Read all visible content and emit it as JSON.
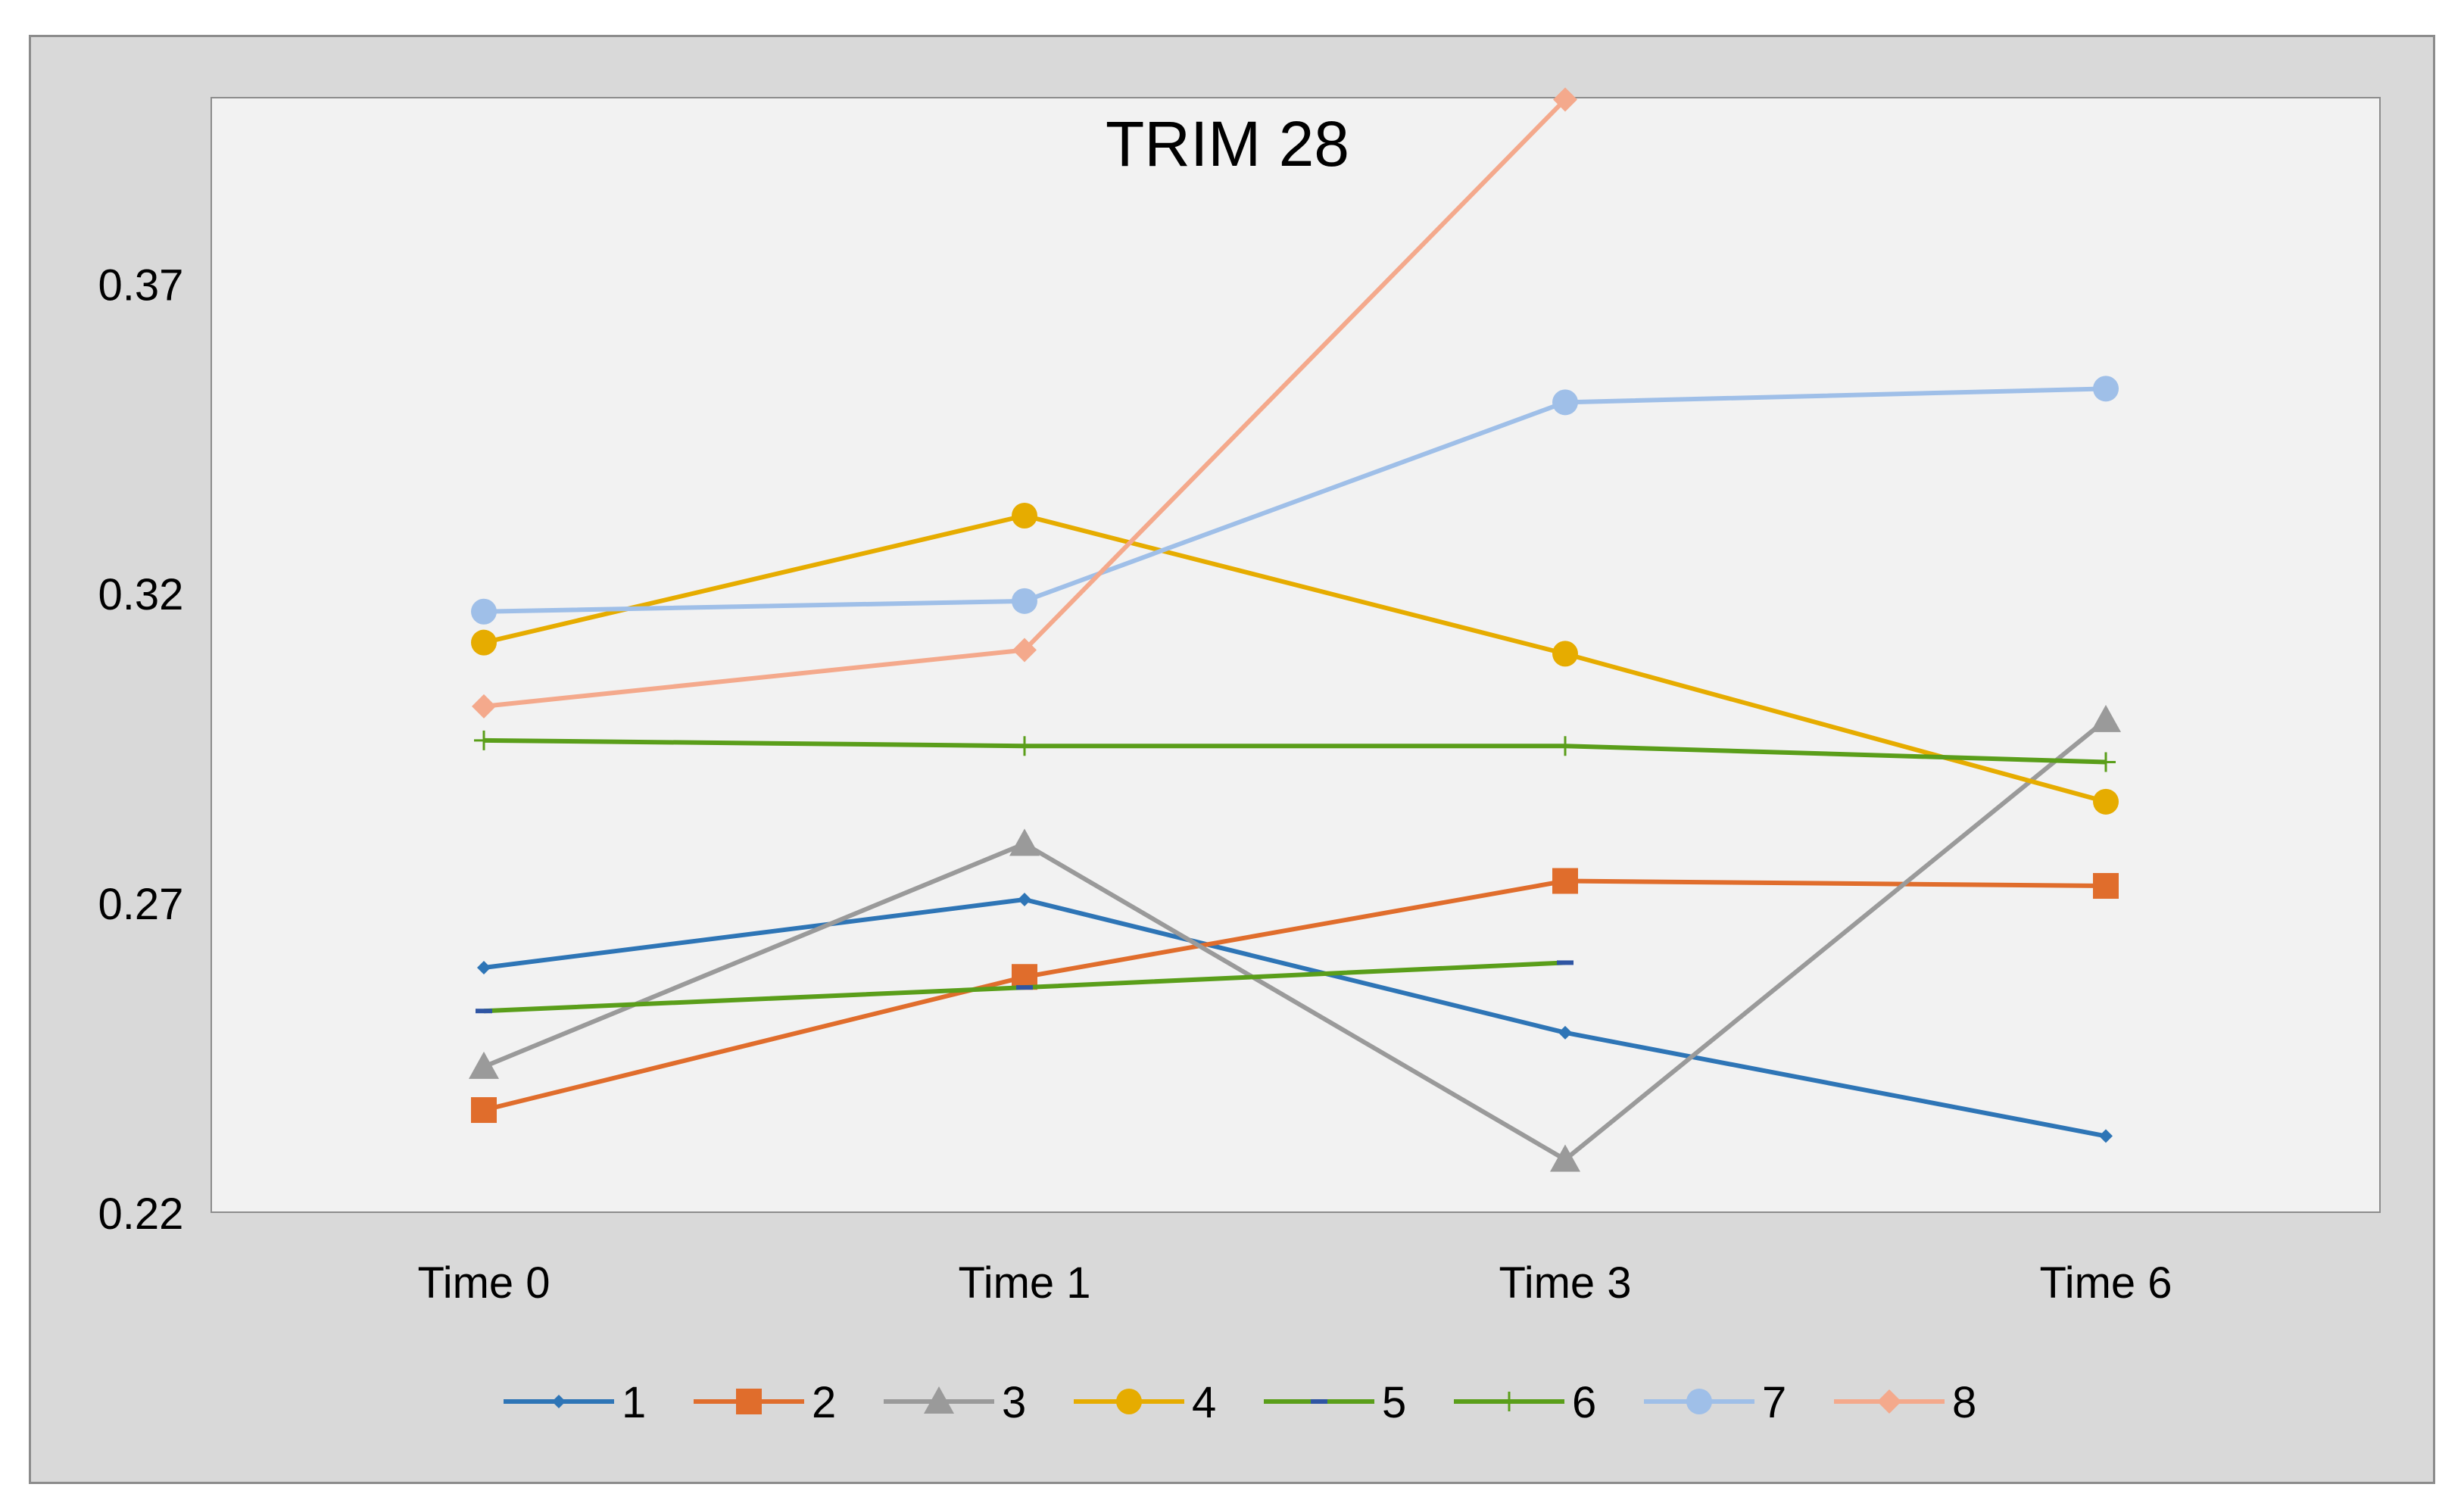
{
  "chart_data": {
    "type": "line",
    "title": "TRIM 28",
    "xlabel": "",
    "ylabel": "",
    "categories": [
      "Time 0",
      "Time 1",
      "Time 3",
      "Time 6"
    ],
    "ylim": [
      0.22,
      0.4
    ],
    "yticks": [
      0.22,
      0.27,
      0.32,
      0.37
    ],
    "ytick_labels": [
      "0.22",
      "0.27",
      "0.32",
      "0.37"
    ],
    "grid": false,
    "legend_position": "bottom",
    "series": [
      {
        "name": "1",
        "color": "#2e75b6",
        "marker": "small-diamond",
        "values": [
          0.2595,
          0.2705,
          0.249,
          0.2323
        ]
      },
      {
        "name": "2",
        "color": "#e06d2c",
        "marker": "square",
        "values": [
          0.2365,
          0.258,
          0.2735,
          0.2727
        ]
      },
      {
        "name": "3",
        "color": "#9a9a9a",
        "marker": "triangle",
        "values": [
          0.2435,
          0.2795,
          0.2285,
          0.2995
        ]
      },
      {
        "name": "4",
        "color": "#e6ac00",
        "marker": "circle",
        "values": [
          0.312,
          0.3325,
          0.3102,
          0.2863
        ]
      },
      {
        "name": "5",
        "color": "#5a9e1a",
        "marker": "dash",
        "values": [
          0.2525,
          0.2563,
          0.2603,
          null
        ]
      },
      {
        "name": "6",
        "color": "#5a9e1a",
        "marker": "plus",
        "values": [
          0.2962,
          0.2953,
          0.2953,
          0.2927
        ]
      },
      {
        "name": "7",
        "color": "#9fbfe8",
        "marker": "circle",
        "values": [
          0.317,
          0.3187,
          0.3508,
          0.353
        ]
      },
      {
        "name": "8",
        "color": "#f4a98c",
        "marker": "diamond",
        "values": [
          0.3017,
          0.3108,
          0.3997,
          null
        ]
      }
    ]
  }
}
